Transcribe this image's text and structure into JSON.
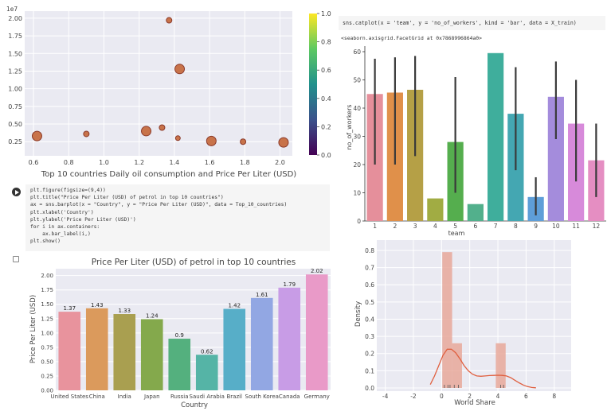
{
  "panels": {
    "catplot_code": "sns.catplot(x = 'team', y = 'no_of_workers', kind = 'bar', data = X_train)",
    "catplot_output": "<seaborn.axisgrid.FacetGrid at 0x7868996864a0>",
    "barplot_code": [
      "plt.figure(figsize=(9,4))",
      "plt.title(\"Price Per Liter (USD) of petrol in top 10 countries\")",
      "ax = sns.barplot(x = \"Country\", y = \"Price Per Liter (USD)\", data = Top_10_countries)",
      "plt.xlabel('Country')",
      "plt.ylabel('Price Per Liter (USD)')",
      "for i in ax.containers:",
      "    ax.bar_label(i,)",
      "plt.show()"
    ]
  },
  "chart_data": [
    {
      "type": "scatter",
      "name": "oil-scatter",
      "title": "Top 10 countries Daily oil consumption and Price Per Liter (USD)",
      "offset_label": "1e7",
      "xlim": [
        0.55,
        2.07
      ],
      "ylim": [
        500000.0,
        21000000.0
      ],
      "xticks": [
        "0.6",
        "0.8",
        "1.0",
        "1.2",
        "1.4",
        "1.6",
        "1.8",
        "2.0"
      ],
      "xtick_values": [
        0.6,
        0.8,
        1.0,
        1.2,
        1.4,
        1.6,
        1.8,
        2.0
      ],
      "yticks": [
        "0.25",
        "0.50",
        "0.75",
        "1.00",
        "1.25",
        "1.50",
        "1.75",
        "2.00"
      ],
      "ytick_values": [
        2500000.0,
        5000000.0,
        7500000.0,
        10000000.0,
        12500000.0,
        15000000.0,
        17500000.0,
        20000000.0
      ],
      "points": [
        {
          "x": 0.62,
          "y": 3300000,
          "s": 6
        },
        {
          "x": 0.9,
          "y": 3600000,
          "s": 3.5
        },
        {
          "x": 1.24,
          "y": 4000000,
          "s": 6
        },
        {
          "x": 1.33,
          "y": 4500000,
          "s": 3.5
        },
        {
          "x": 1.37,
          "y": 19700000,
          "s": 3.5
        },
        {
          "x": 1.42,
          "y": 3000000,
          "s": 3
        },
        {
          "x": 1.43,
          "y": 12800000,
          "s": 6
        },
        {
          "x": 1.61,
          "y": 2600000,
          "s": 6
        },
        {
          "x": 1.79,
          "y": 2500000,
          "s": 3.5
        },
        {
          "x": 2.02,
          "y": 2400000,
          "s": 6
        }
      ],
      "colorbar": {
        "ticks": [
          "0.0",
          "0.2",
          "0.4",
          "0.6",
          "0.8",
          "1.0"
        ],
        "values": [
          0,
          0.2,
          0.4,
          0.6,
          0.8,
          1.0
        ]
      },
      "grid": true,
      "colors": {
        "point_fill": "#c8734a",
        "point_edge": "#8b3a2a"
      }
    },
    {
      "type": "bar",
      "name": "workers-catplot",
      "xlabel": "team",
      "ylabel": "no_of_workers",
      "ylim": [
        0,
        60
      ],
      "yticks": [
        "0",
        "10",
        "20",
        "30",
        "40",
        "50",
        "60"
      ],
      "ytick_values": [
        0,
        10,
        20,
        30,
        40,
        50,
        60
      ],
      "categories": [
        "1",
        "2",
        "3",
        "4",
        "5",
        "6",
        "7",
        "8",
        "9",
        "10",
        "11",
        "12"
      ],
      "values": [
        45,
        45.5,
        46.5,
        8,
        28,
        6,
        59.5,
        38,
        8.5,
        44,
        34.5,
        21.5
      ],
      "errors": [
        [
          20,
          57.5
        ],
        [
          20,
          58
        ],
        [
          23,
          58.5
        ],
        null,
        [
          10,
          51
        ],
        null,
        null,
        [
          18,
          54.5
        ],
        [
          2,
          15.5
        ],
        [
          29,
          56.5
        ],
        [
          14,
          50
        ],
        [
          8.5,
          34.5
        ]
      ],
      "colors": [
        "#e58f9b",
        "#e0904a",
        "#b5a046",
        "#a1ac43",
        "#55ae4e",
        "#52b08c",
        "#3fae9c",
        "#44a7b2",
        "#5e9ed8",
        "#a48cdc",
        "#d78ada",
        "#e58ec2"
      ],
      "grid": true
    },
    {
      "type": "bar",
      "name": "petrol-price-bars",
      "title": "Price Per Liter (USD) of petrol in top 10 countries",
      "xlabel": "Country",
      "ylabel": "Price Per Liter (USD)",
      "ylim": [
        0,
        2.12
      ],
      "yticks": [
        "0.00",
        "0.25",
        "0.50",
        "0.75",
        "1.00",
        "1.25",
        "1.50",
        "1.75",
        "2.00"
      ],
      "ytick_values": [
        0,
        0.25,
        0.5,
        0.75,
        1.0,
        1.25,
        1.5,
        1.75,
        2.0
      ],
      "categories": [
        "United States",
        "China",
        "India",
        "Japan",
        "Russia",
        "Saudi Arabia",
        "Brazil",
        "South Korea",
        "Canada",
        "Germany"
      ],
      "values": [
        1.37,
        1.43,
        1.33,
        1.24,
        0.9,
        0.62,
        1.42,
        1.61,
        1.79,
        2.02
      ],
      "value_labels": [
        "1.37",
        "1.43",
        "1.33",
        "1.24",
        "0.9",
        "0.62",
        "1.42",
        "1.61",
        "1.79",
        "2.02"
      ],
      "colors": [
        "#e8939d",
        "#db9a5c",
        "#a99f50",
        "#84a94c",
        "#54b07e",
        "#55b4a6",
        "#57aec8",
        "#92a7e3",
        "#c89ce6",
        "#e99ac8"
      ],
      "grid": true
    },
    {
      "type": "bar",
      "name": "world-share-distplot",
      "xlabel": "World Share",
      "ylabel": "Density",
      "xlim": [
        -4.6,
        9.2
      ],
      "ylim": [
        0,
        0.86
      ],
      "xticks": [
        "-4",
        "-2",
        "0",
        "2",
        "4",
        "6",
        "8"
      ],
      "xtick_values": [
        -4,
        -2,
        0,
        2,
        4,
        6,
        8
      ],
      "yticks": [
        "0.0",
        "0.1",
        "0.2",
        "0.3",
        "0.4",
        "0.5",
        "0.6",
        "0.7",
        "0.8"
      ],
      "ytick_values": [
        0,
        0.1,
        0.2,
        0.3,
        0.4,
        0.5,
        0.6,
        0.7,
        0.8
      ],
      "bins": [
        {
          "x0": 0.05,
          "x1": 0.75,
          "density": 0.79
        },
        {
          "x0": 0.75,
          "x1": 1.45,
          "density": 0.26
        },
        {
          "x0": 3.85,
          "x1": 4.55,
          "density": 0.26
        }
      ],
      "kde_x": [
        -0.8,
        -0.5,
        -0.2,
        0.1,
        0.4,
        0.7,
        1.0,
        1.3,
        1.6,
        1.9,
        2.2,
        2.5,
        2.8,
        3.1,
        3.4,
        3.7,
        4.0,
        4.3,
        4.6,
        4.9,
        5.2,
        5.5,
        5.8,
        6.1,
        6.4,
        6.7
      ],
      "kde_y": [
        0.02,
        0.07,
        0.13,
        0.19,
        0.225,
        0.225,
        0.205,
        0.17,
        0.13,
        0.1,
        0.08,
        0.07,
        0.068,
        0.07,
        0.072,
        0.073,
        0.074,
        0.073,
        0.07,
        0.06,
        0.045,
        0.03,
        0.017,
        0.008,
        0.003,
        0.001
      ],
      "rug": [
        0.2,
        0.45,
        0.6,
        0.9,
        1.2,
        4.2,
        4.4
      ],
      "grid": true,
      "colors": {
        "bar": "#e8a89a",
        "line": "#e06040"
      }
    }
  ]
}
